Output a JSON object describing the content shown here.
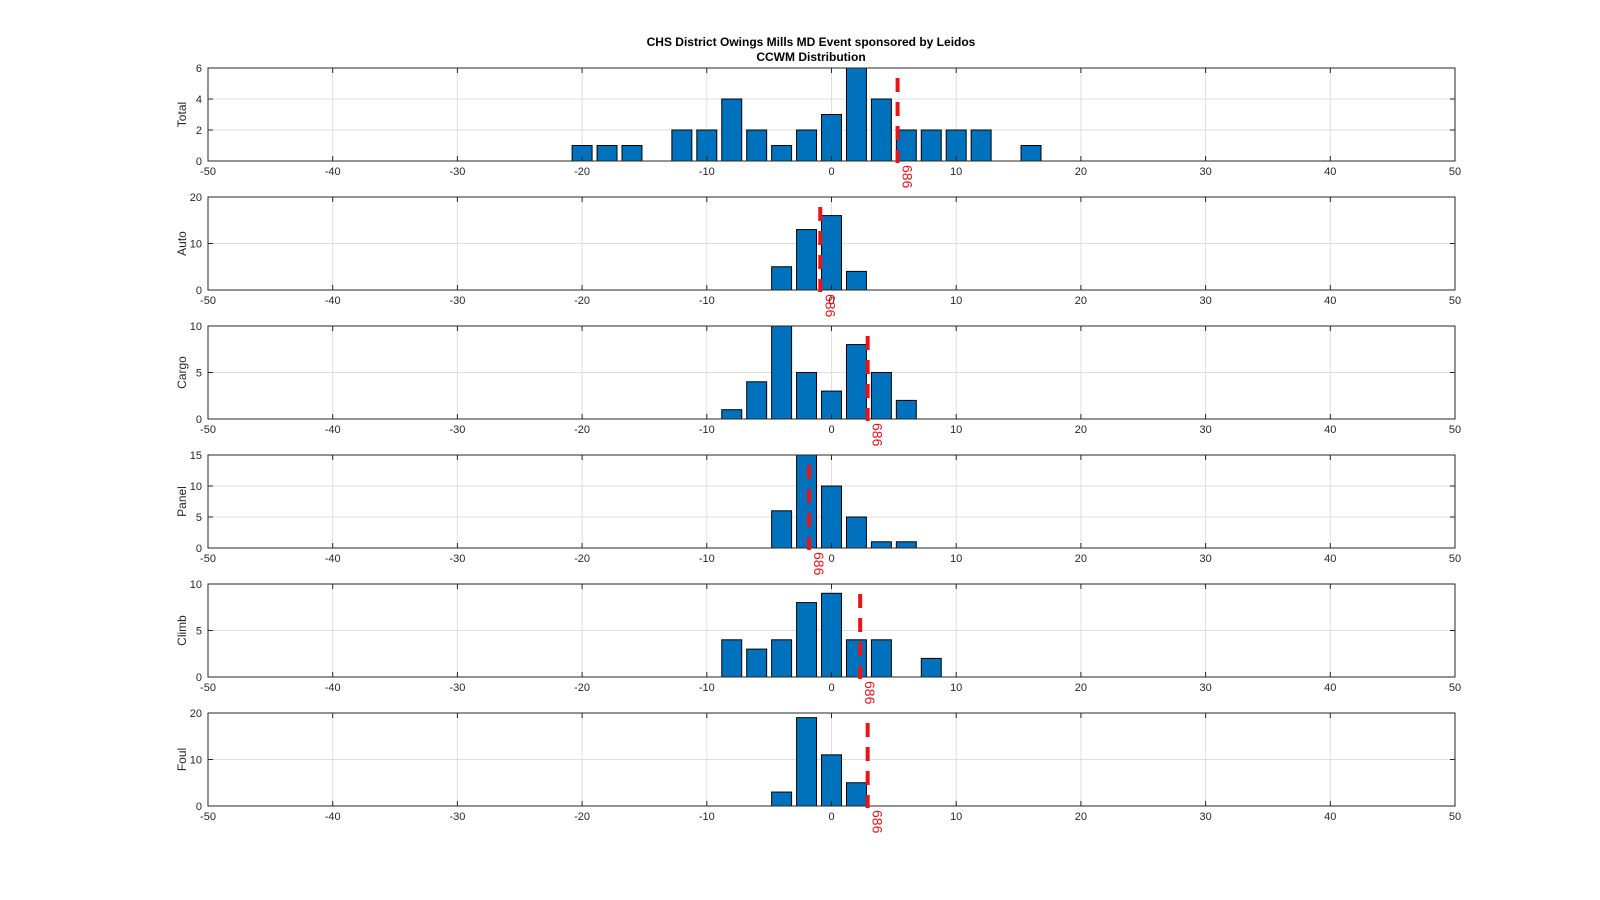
{
  "figure": {
    "title_line1": "CHS District Owings Mills MD Event sponsored by Leidos",
    "title_line2": "CCWM Distribution"
  },
  "colors": {
    "bar_fill": "#0072BD",
    "bar_edge": "#000000",
    "marker": "#e8141a",
    "grid": "#dfdfdf",
    "axis": "#262626"
  },
  "chart_data": [
    {
      "type": "bar",
      "ylabel": "Total",
      "xlim": [
        -50,
        50
      ],
      "ylim": [
        0,
        6
      ],
      "xticks": [
        -50,
        -40,
        -30,
        -20,
        -10,
        0,
        10,
        20,
        30,
        40,
        50
      ],
      "yticks": [
        0,
        2,
        4,
        6
      ],
      "grid": true,
      "bin_width": 2,
      "bars": [
        {
          "x": -20,
          "y": 1
        },
        {
          "x": -18,
          "y": 1
        },
        {
          "x": -16,
          "y": 1
        },
        {
          "x": -12,
          "y": 2
        },
        {
          "x": -10,
          "y": 2
        },
        {
          "x": -8,
          "y": 4
        },
        {
          "x": -6,
          "y": 2
        },
        {
          "x": -4,
          "y": 1
        },
        {
          "x": -2,
          "y": 2
        },
        {
          "x": 0,
          "y": 3
        },
        {
          "x": 2,
          "y": 6
        },
        {
          "x": 4,
          "y": 4
        },
        {
          "x": 6,
          "y": 2
        },
        {
          "x": 8,
          "y": 2
        },
        {
          "x": 10,
          "y": 2
        },
        {
          "x": 12,
          "y": 2
        },
        {
          "x": 16,
          "y": 1
        }
      ],
      "marker": {
        "x": 5.3,
        "label": "686"
      }
    },
    {
      "type": "bar",
      "ylabel": "Auto",
      "xlim": [
        -50,
        50
      ],
      "ylim": [
        0,
        20
      ],
      "xticks": [
        -50,
        -40,
        -30,
        -20,
        -10,
        0,
        10,
        20,
        30,
        40,
        50
      ],
      "yticks": [
        0,
        10,
        20
      ],
      "grid": true,
      "bin_width": 2,
      "bars": [
        {
          "x": -4,
          "y": 5
        },
        {
          "x": -2,
          "y": 13
        },
        {
          "x": 0,
          "y": 16
        },
        {
          "x": 2,
          "y": 4
        }
      ],
      "marker": {
        "x": -0.9,
        "label": "686"
      }
    },
    {
      "type": "bar",
      "ylabel": "Cargo",
      "xlim": [
        -50,
        50
      ],
      "ylim": [
        0,
        10
      ],
      "xticks": [
        -50,
        -40,
        -30,
        -20,
        -10,
        0,
        10,
        20,
        30,
        40,
        50
      ],
      "yticks": [
        0,
        5,
        10
      ],
      "grid": true,
      "bin_width": 2,
      "bars": [
        {
          "x": -8,
          "y": 1
        },
        {
          "x": -6,
          "y": 4
        },
        {
          "x": -4,
          "y": 10
        },
        {
          "x": -2,
          "y": 5
        },
        {
          "x": 0,
          "y": 3
        },
        {
          "x": 2,
          "y": 8
        },
        {
          "x": 4,
          "y": 5
        },
        {
          "x": 6,
          "y": 2
        }
      ],
      "marker": {
        "x": 2.9,
        "label": "686"
      }
    },
    {
      "type": "bar",
      "ylabel": "Panel",
      "xlim": [
        -50,
        50
      ],
      "ylim": [
        0,
        15
      ],
      "xticks": [
        -50,
        -40,
        -30,
        -20,
        -10,
        0,
        10,
        20,
        30,
        40,
        50
      ],
      "yticks": [
        0,
        5,
        10,
        15
      ],
      "grid": true,
      "bin_width": 2,
      "bars": [
        {
          "x": -4,
          "y": 6
        },
        {
          "x": -2,
          "y": 15
        },
        {
          "x": 0,
          "y": 10
        },
        {
          "x": 2,
          "y": 5
        },
        {
          "x": 4,
          "y": 1
        },
        {
          "x": 6,
          "y": 1
        }
      ],
      "marker": {
        "x": -1.8,
        "label": "686"
      }
    },
    {
      "type": "bar",
      "ylabel": "Climb",
      "xlim": [
        -50,
        50
      ],
      "ylim": [
        0,
        10
      ],
      "xticks": [
        -50,
        -40,
        -30,
        -20,
        -10,
        0,
        10,
        20,
        30,
        40,
        50
      ],
      "yticks": [
        0,
        5,
        10
      ],
      "grid": true,
      "bin_width": 2,
      "bars": [
        {
          "x": -8,
          "y": 4
        },
        {
          "x": -6,
          "y": 3
        },
        {
          "x": -4,
          "y": 4
        },
        {
          "x": -2,
          "y": 8
        },
        {
          "x": 0,
          "y": 9
        },
        {
          "x": 2,
          "y": 4
        },
        {
          "x": 4,
          "y": 4
        },
        {
          "x": 8,
          "y": 2
        }
      ],
      "marker": {
        "x": 2.3,
        "label": "686"
      }
    },
    {
      "type": "bar",
      "ylabel": "Foul",
      "xlim": [
        -50,
        50
      ],
      "ylim": [
        0,
        20
      ],
      "xticks": [
        -50,
        -40,
        -30,
        -20,
        -10,
        0,
        10,
        20,
        30,
        40,
        50
      ],
      "yticks": [
        0,
        10,
        20
      ],
      "grid": true,
      "bin_width": 2,
      "bars": [
        {
          "x": -4,
          "y": 3
        },
        {
          "x": -2,
          "y": 19
        },
        {
          "x": 0,
          "y": 11
        },
        {
          "x": 2,
          "y": 5
        }
      ],
      "marker": {
        "x": 2.9,
        "label": "686"
      }
    }
  ]
}
